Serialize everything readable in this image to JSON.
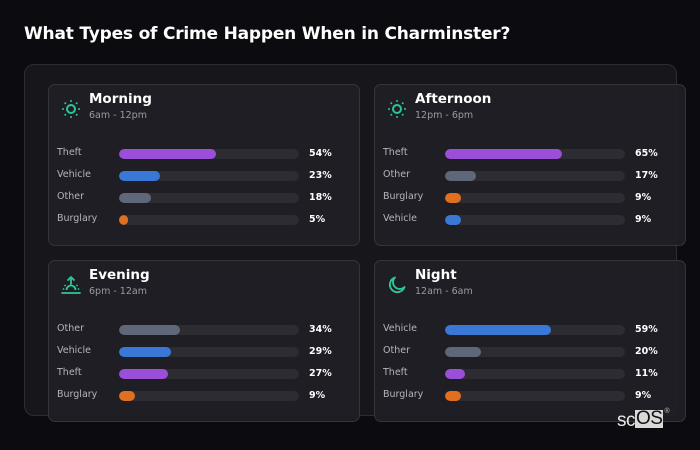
{
  "page": {
    "title": "What Types of Crime Happen When in Charminster?"
  },
  "colors": {
    "accent": "#2bc79a",
    "theft": "#9b4fd8",
    "vehicle": "#3a78d8",
    "other": "#5f6878",
    "burglary": "#e07020",
    "track": "#2c2c32"
  },
  "cards": [
    {
      "title": "Morning",
      "subtitle": "6am - 12pm",
      "icon": "sun-icon",
      "rows": [
        {
          "label": "Theft",
          "value": 54,
          "display": "54%",
          "color": "#9b4fd8"
        },
        {
          "label": "Vehicle",
          "value": 23,
          "display": "23%",
          "color": "#3a78d8"
        },
        {
          "label": "Other",
          "value": 18,
          "display": "18%",
          "color": "#5f6878"
        },
        {
          "label": "Burglary",
          "value": 5,
          "display": "5%",
          "color": "#e07020"
        }
      ]
    },
    {
      "title": "Afternoon",
      "subtitle": "12pm - 6pm",
      "icon": "sun-icon",
      "rows": [
        {
          "label": "Theft",
          "value": 65,
          "display": "65%",
          "color": "#9b4fd8"
        },
        {
          "label": "Other",
          "value": 17,
          "display": "17%",
          "color": "#5f6878"
        },
        {
          "label": "Burglary",
          "value": 9,
          "display": "9%",
          "color": "#e07020"
        },
        {
          "label": "Vehicle",
          "value": 9,
          "display": "9%",
          "color": "#3a78d8"
        }
      ]
    },
    {
      "title": "Evening",
      "subtitle": "6pm - 12am",
      "icon": "sunset-icon",
      "rows": [
        {
          "label": "Other",
          "value": 34,
          "display": "34%",
          "color": "#5f6878"
        },
        {
          "label": "Vehicle",
          "value": 29,
          "display": "29%",
          "color": "#3a78d8"
        },
        {
          "label": "Theft",
          "value": 27,
          "display": "27%",
          "color": "#9b4fd8"
        },
        {
          "label": "Burglary",
          "value": 9,
          "display": "9%",
          "color": "#e07020"
        }
      ]
    },
    {
      "title": "Night",
      "subtitle": "12am - 6am",
      "icon": "moon-icon",
      "rows": [
        {
          "label": "Vehicle",
          "value": 59,
          "display": "59%",
          "color": "#3a78d8"
        },
        {
          "label": "Other",
          "value": 20,
          "display": "20%",
          "color": "#5f6878"
        },
        {
          "label": "Theft",
          "value": 11,
          "display": "11%",
          "color": "#9b4fd8"
        },
        {
          "label": "Burglary",
          "value": 9,
          "display": "9%",
          "color": "#e07020"
        }
      ]
    }
  ],
  "watermark": {
    "prefix": "sc",
    "boxed": "OS",
    "mark": "®"
  }
}
